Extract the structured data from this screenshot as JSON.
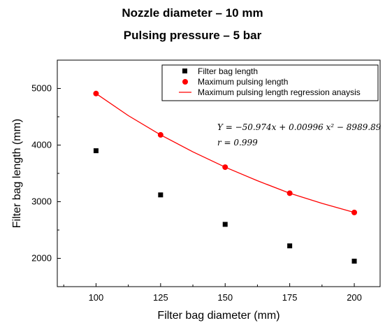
{
  "chart_data": {
    "type": "scatter",
    "title": "Nozzle diameter – 10 mm",
    "subtitle": "Pulsing pressure – 5 bar",
    "xlabel": "Filter bag diameter (mm)",
    "ylabel": "Filter bag length (mm)",
    "xlim": [
      85,
      210
    ],
    "ylim": [
      1500,
      5500
    ],
    "xticks": [
      100,
      125,
      150,
      175,
      200
    ],
    "yticks": [
      2000,
      3000,
      4000,
      5000
    ],
    "x_tick_labels": [
      "100",
      "125",
      "150",
      "175",
      "200"
    ],
    "y_tick_labels": [
      "2000",
      "3000",
      "4000",
      "5000"
    ],
    "grid": false,
    "legend_position": "top-right",
    "series": [
      {
        "name": "Filter bag length",
        "marker": "square",
        "color": "#000000",
        "x": [
          100,
          125,
          150,
          175,
          200
        ],
        "y": [
          3900,
          3120,
          2600,
          2220,
          1950
        ]
      },
      {
        "name": "Maximum pulsing length",
        "marker": "circle",
        "color": "#ff0000",
        "x": [
          100,
          125,
          150,
          175,
          200
        ],
        "y": [
          4910,
          4180,
          3610,
          3150,
          2810
        ]
      },
      {
        "name": "Maximum pulsing length regression anaysis",
        "marker": "line",
        "color": "#ff0000",
        "x": [
          100,
          112.5,
          125,
          137.5,
          150,
          162.5,
          175,
          187.5,
          200
        ],
        "y": [
          4910,
          4520,
          4180,
          3880,
          3610,
          3370,
          3150,
          2970,
          2810
        ]
      }
    ],
    "annotations": [
      "Y = −50.974x + 0.00996 x² − 8989.89",
      "r = 0.999"
    ]
  }
}
